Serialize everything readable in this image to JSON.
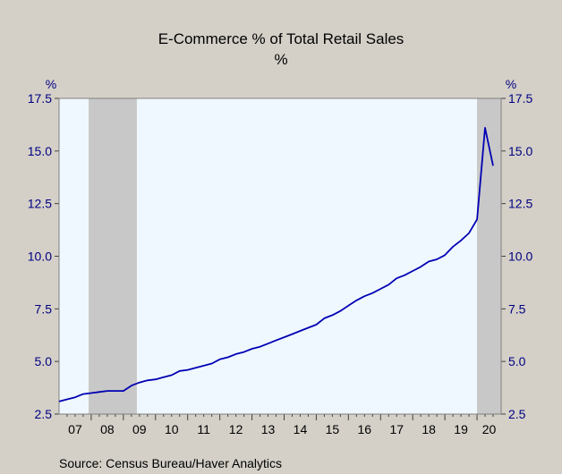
{
  "chart_data": {
    "type": "line",
    "title": "E-Commerce % of Total Retail Sales",
    "subtitle": "%",
    "left_unit": "%",
    "right_unit": "%",
    "ylim": [
      2.5,
      17.5
    ],
    "yticks": [
      2.5,
      5.0,
      7.5,
      10.0,
      12.5,
      15.0,
      17.5
    ],
    "ytick_labels": [
      "2.5",
      "5.0",
      "7.5",
      "10.0",
      "12.5",
      "15.0",
      "17.5"
    ],
    "xlim": [
      2007.0,
      2020.75
    ],
    "xtick_labels": [
      "07",
      "08",
      "09",
      "10",
      "11",
      "12",
      "13",
      "14",
      "15",
      "16",
      "17",
      "18",
      "19",
      "20"
    ],
    "recessions": [
      [
        2007.92,
        2009.42
      ],
      [
        2020.0,
        2020.75
      ]
    ],
    "grid": false,
    "legend": "none",
    "series": [
      {
        "x": [
          2007.0,
          2007.25,
          2007.5,
          2007.75,
          2008.0,
          2008.25,
          2008.5,
          2008.75,
          2009.0,
          2009.25,
          2009.5,
          2009.75,
          2010.0,
          2010.25,
          2010.5,
          2010.75,
          2011.0,
          2011.25,
          2011.5,
          2011.75,
          2012.0,
          2012.25,
          2012.5,
          2012.75,
          2013.0,
          2013.25,
          2013.5,
          2013.75,
          2014.0,
          2014.25,
          2014.5,
          2014.75,
          2015.0,
          2015.25,
          2015.5,
          2015.75,
          2016.0,
          2016.25,
          2016.5,
          2016.75,
          2017.0,
          2017.25,
          2017.5,
          2017.75,
          2018.0,
          2018.25,
          2018.5,
          2018.75,
          2019.0,
          2019.25,
          2019.5,
          2019.75,
          2020.0,
          2020.25,
          2020.5
        ],
        "values": [
          3.1,
          3.2,
          3.3,
          3.45,
          3.5,
          3.55,
          3.6,
          3.6,
          3.6,
          3.85,
          4.0,
          4.1,
          4.15,
          4.25,
          4.35,
          4.55,
          4.6,
          4.7,
          4.8,
          4.9,
          5.1,
          5.2,
          5.35,
          5.45,
          5.6,
          5.7,
          5.85,
          6.0,
          6.15,
          6.3,
          6.45,
          6.6,
          6.75,
          7.05,
          7.2,
          7.4,
          7.65,
          7.9,
          8.1,
          8.25,
          8.45,
          8.65,
          8.95,
          9.1,
          9.3,
          9.5,
          9.75,
          9.85,
          10.05,
          10.45,
          10.75,
          11.1,
          11.75,
          16.1,
          14.3
        ]
      }
    ],
    "colors": {
      "plot_background": "#f0f8ff",
      "recession_shading": "#c8c8c8",
      "line": "#0000b4",
      "axis_text": "#000080"
    },
    "source": "Source:    Census Bureau/Haver Analytics"
  }
}
